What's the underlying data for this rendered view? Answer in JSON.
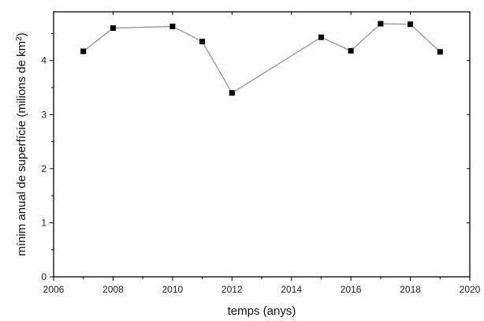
{
  "chart_data": {
    "type": "line",
    "title": "",
    "xlabel": "temps (anys)",
    "ylabel_main": "mínim anual de superfície (milions de km",
    "ylabel_sup": "2",
    "ylabel_close": ")",
    "xlim": [
      2006,
      2020
    ],
    "ylim": [
      0,
      4.9
    ],
    "xticks": [
      2006,
      2008,
      2010,
      2012,
      2014,
      2016,
      2018,
      2020
    ],
    "yticks": [
      0,
      1,
      2,
      3,
      4
    ],
    "grid": false,
    "legend": "none",
    "series": [
      {
        "x": [
          2007,
          2008,
          2010,
          2011,
          2012,
          2015,
          2016,
          2017,
          2018,
          2019
        ],
        "y": [
          4.17,
          4.6,
          4.63,
          4.35,
          3.4,
          4.43,
          4.18,
          4.68,
          4.67,
          4.16
        ]
      }
    ],
    "colors": {
      "line": "#8c8c8c",
      "marker": "#000000",
      "axis": "#000000"
    }
  }
}
